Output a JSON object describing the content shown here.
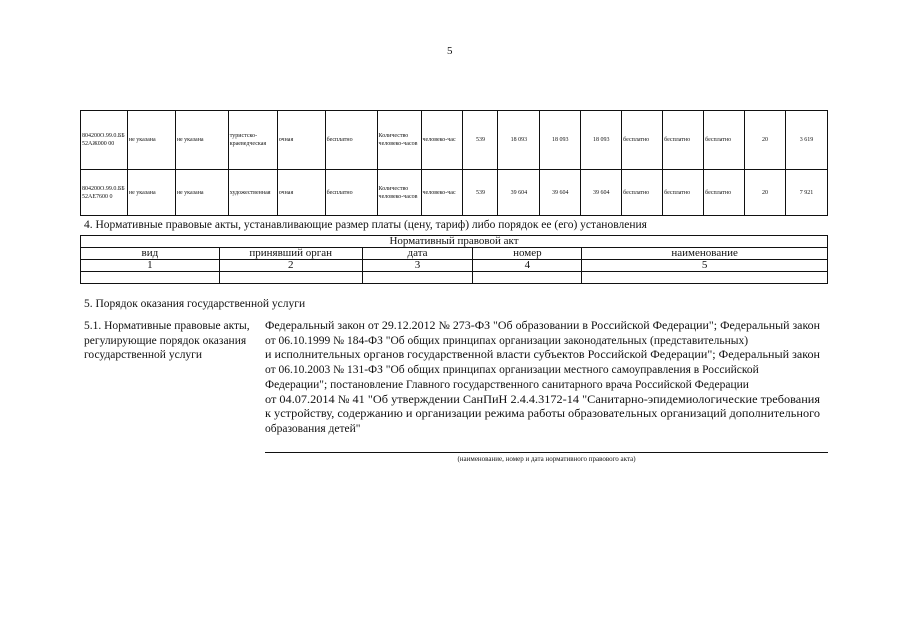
{
  "page_number": "5",
  "services_table": {
    "rows": [
      [
        "804200О.99.0.ББ52АЖ000 00",
        "не указана",
        "не указана",
        "туристско-краеведческая",
        "очная",
        "бесплатно",
        "Количество человеко-часов",
        "человеко-час",
        "539",
        "18 093",
        "18 093",
        "18 093",
        "бесплатно",
        "бесплатно",
        "бесплатно",
        "20",
        "3 619"
      ],
      [
        "804200О.99.0.ББ52АЕ7600 0",
        "не указана",
        "не указана",
        "художественная",
        "очная",
        "бесплатно",
        "Количество человеко-часов",
        "человеко-час",
        "539",
        "39 604",
        "39 604",
        "39 604",
        "бесплатно",
        "бесплатно",
        "бесплатно",
        "20",
        "7 921"
      ]
    ]
  },
  "section4": {
    "heading": "4. Нормативные правовые акты, устанавливающие размер платы (цену, тариф) либо порядок ее (его) установления",
    "table_title": "Нормативный правовой акт",
    "columns": [
      "вид",
      "принявший орган",
      "дата",
      "номер",
      "наименование"
    ],
    "numbers": [
      "1",
      "2",
      "3",
      "4",
      "5"
    ],
    "empty_row": [
      "",
      "",
      "",
      "",
      ""
    ]
  },
  "section5": {
    "heading": "5. Порядок оказания государственной услуги",
    "label_lines": [
      "5.1. Нормативные правовые акты,",
      "регулирующие порядок оказания",
      "государственной услуги"
    ],
    "text_lines": [
      "Федеральный закон от 29.12.2012 № 273-ФЗ \"Об образовании в Российской Федерации\"; Федеральный закон",
      "от 06.10.1999 № 184-ФЗ \"Об общих принципах организации законодательных (представительных)",
      "и исполнительных органов государственной власти субъектов Российской Федерации\"; Федеральный закон",
      "от 06.10.2003 № 131-ФЗ \"Об общих принципах организации местного самоуправления в Российской",
      "Федерации\"; постановление Главного государственного санитарного врача Российской Федерации",
      "от 04.07.2014 № 41 \"Об утверждении СанПиН 2.4.4.3172-14 \"Санитарно-эпидемиологические требования",
      "к устройству, содержанию и организации режима работы образовательных организаций дополнительного",
      "образования детей\""
    ],
    "caption": "(наименование, номер и дата нормативного правового акта)"
  }
}
